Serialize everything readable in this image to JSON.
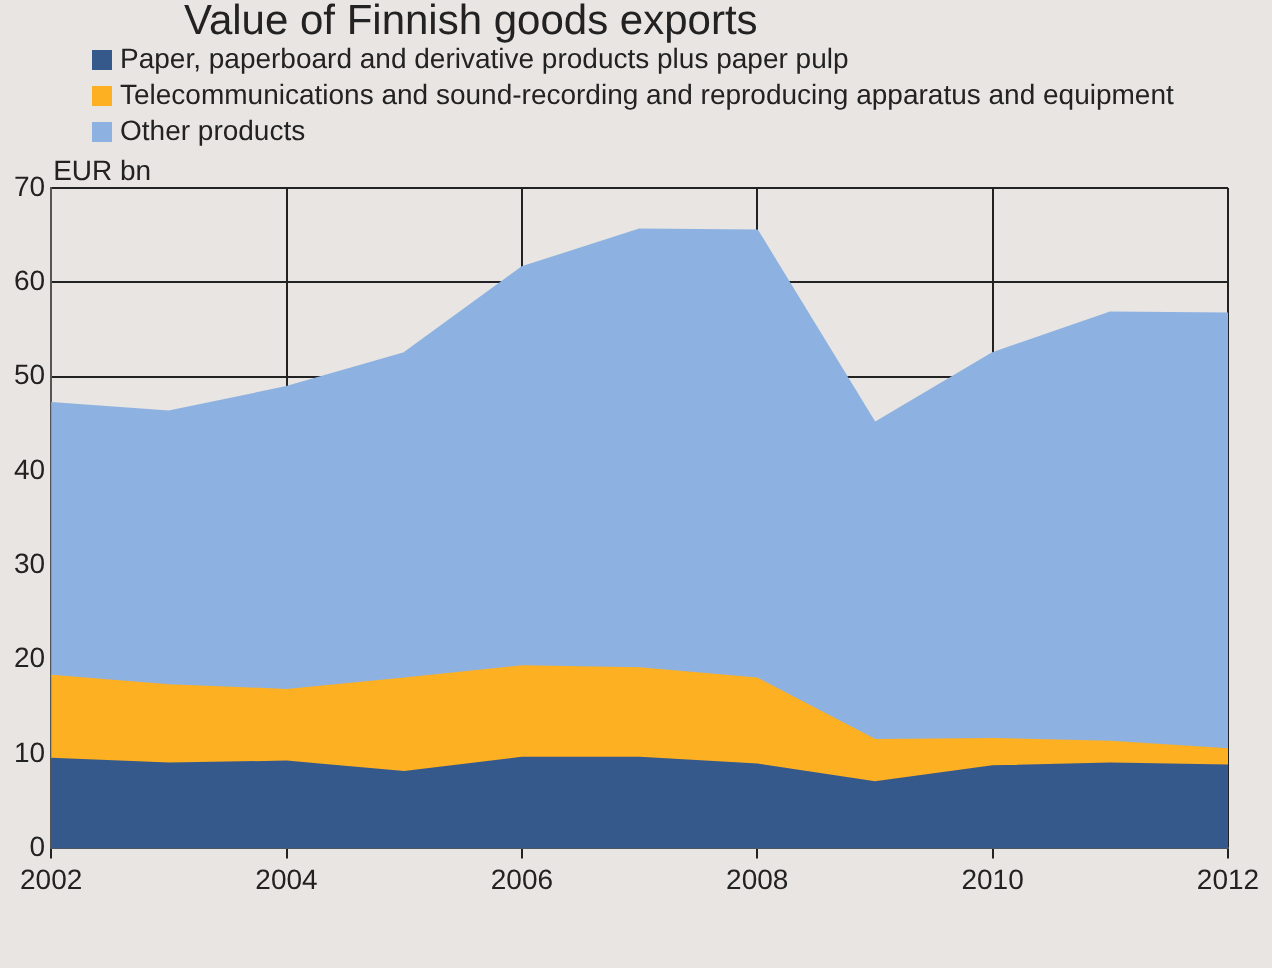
{
  "chart_data": {
    "type": "area",
    "title": "Value of Finnish goods exports",
    "ylabel": "EUR bn",
    "stacked": true,
    "x": [
      2002,
      2003,
      2004,
      2005,
      2006,
      2007,
      2008,
      2009,
      2010,
      2011,
      2012
    ],
    "series": [
      {
        "name": "Paper, paperboard and derivative products plus paper pulp",
        "color": "#36598c",
        "values": [
          9.5,
          9.0,
          9.2,
          8.1,
          9.6,
          9.6,
          8.9,
          7.0,
          8.7,
          9.0,
          8.8
        ]
      },
      {
        "name": "Telecommunications and sound-recording and reproducing apparatus and equipment",
        "color": "#fdb022",
        "values": [
          8.8,
          8.3,
          7.6,
          9.9,
          9.7,
          9.5,
          9.1,
          4.5,
          2.9,
          2.3,
          1.7
        ]
      },
      {
        "name": "Other products",
        "color": "#8db2e1",
        "values": [
          28.9,
          29.0,
          32.1,
          34.5,
          42.3,
          46.5,
          47.5,
          33.6,
          40.9,
          45.5,
          46.2
        ]
      }
    ],
    "xlim": [
      2002,
      2012
    ],
    "xticks": [
      2002,
      2004,
      2006,
      2008,
      2010,
      2012
    ],
    "ylim": [
      0,
      70
    ],
    "yticks": [
      0,
      10,
      20,
      30,
      40,
      50,
      60,
      70
    ],
    "grid": true,
    "legend": "top"
  }
}
